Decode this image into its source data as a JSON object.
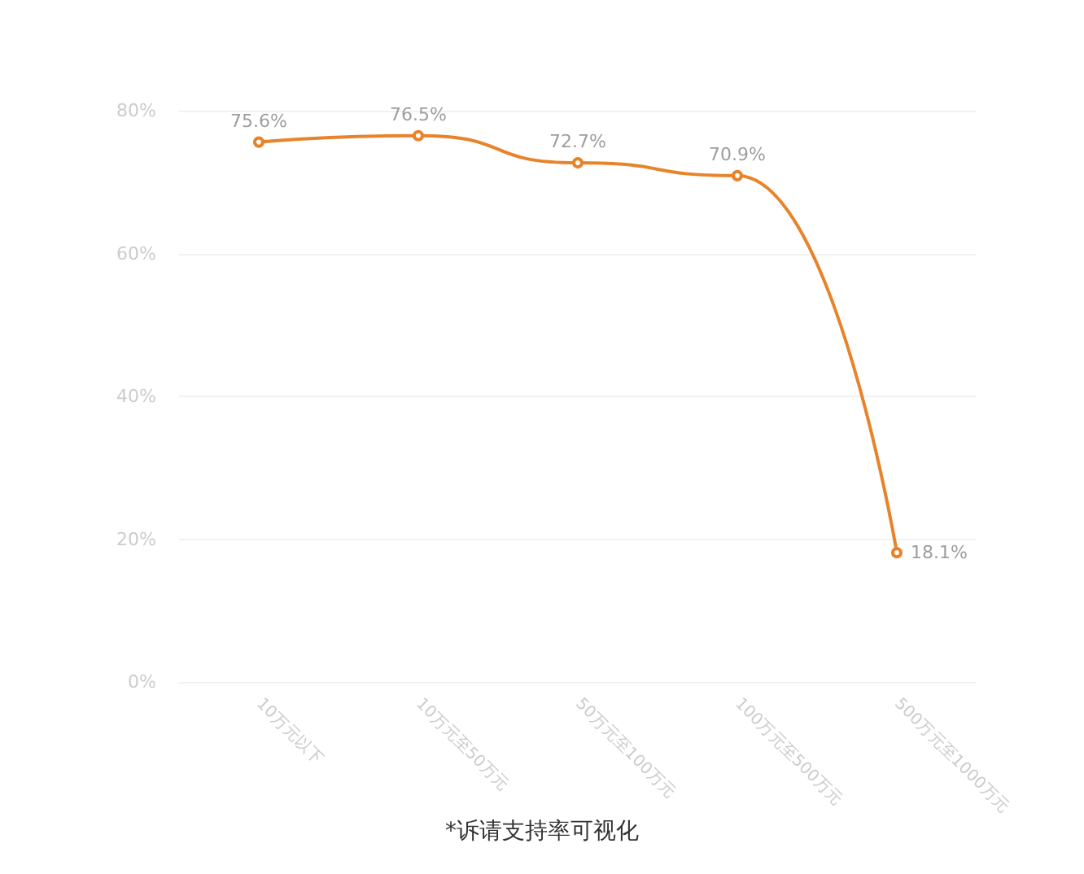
{
  "chart_data": {
    "type": "line",
    "title": "*诉请支持率可视化",
    "categories": [
      "10万元以下",
      "10万元至50万元",
      "50万元至100万元",
      "100万元至500万元",
      "500万元至1000万元"
    ],
    "series": [
      {
        "color": "#e8832a",
        "values": [
          75.6,
          76.5,
          72.7,
          70.9,
          18.1
        ],
        "value_labels": [
          "75.6%",
          "76.5%",
          "72.7%",
          "70.9%",
          "18.1%"
        ]
      }
    ],
    "ylim": [
      0,
      80
    ],
    "yticks": [
      {
        "value": 0,
        "label": "0%"
      },
      {
        "value": 20,
        "label": "20%"
      },
      {
        "value": 40,
        "label": "40%"
      },
      {
        "value": 60,
        "label": "60%"
      },
      {
        "value": 80,
        "label": "80%"
      }
    ],
    "grid": "y",
    "marker": "circle",
    "line_style": "solid"
  }
}
